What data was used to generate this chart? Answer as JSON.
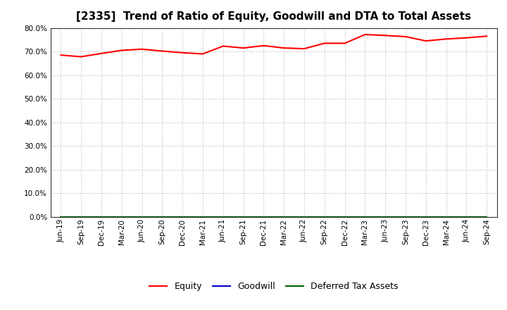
{
  "title": "[2335]  Trend of Ratio of Equity, Goodwill and DTA to Total Assets",
  "x_labels": [
    "Jun-19",
    "Sep-19",
    "Dec-19",
    "Mar-20",
    "Jun-20",
    "Sep-20",
    "Dec-20",
    "Mar-21",
    "Jun-21",
    "Sep-21",
    "Dec-21",
    "Mar-22",
    "Jun-22",
    "Sep-22",
    "Dec-22",
    "Mar-23",
    "Jun-23",
    "Sep-23",
    "Dec-23",
    "Mar-24",
    "Jun-24",
    "Sep-24"
  ],
  "equity": [
    68.5,
    67.8,
    69.2,
    70.5,
    71.0,
    70.2,
    69.5,
    69.0,
    72.3,
    71.5,
    72.5,
    71.5,
    71.2,
    73.5,
    73.5,
    77.2,
    76.8,
    76.3,
    74.5,
    75.3,
    75.8,
    76.5
  ],
  "goodwill": [
    0.0,
    0.0,
    0.0,
    0.0,
    0.0,
    0.0,
    0.0,
    0.0,
    0.0,
    0.0,
    0.0,
    0.0,
    0.0,
    0.0,
    0.0,
    0.0,
    0.0,
    0.0,
    0.0,
    0.0,
    0.0,
    0.0
  ],
  "dta": [
    0.0,
    0.0,
    0.0,
    0.0,
    0.0,
    0.0,
    0.0,
    0.0,
    0.0,
    0.0,
    0.0,
    0.0,
    0.0,
    0.0,
    0.0,
    0.0,
    0.0,
    0.0,
    0.0,
    0.0,
    0.0,
    0.0
  ],
  "equity_color": "#ff0000",
  "goodwill_color": "#0000cc",
  "dta_color": "#006600",
  "ylim": [
    0.0,
    80.0
  ],
  "yticks": [
    0.0,
    10.0,
    20.0,
    30.0,
    40.0,
    50.0,
    60.0,
    70.0,
    80.0
  ],
  "background_color": "#ffffff",
  "grid_color": "#bbbbbb",
  "title_fontsize": 11,
  "tick_fontsize": 7.5,
  "legend_labels": [
    "Equity",
    "Goodwill",
    "Deferred Tax Assets"
  ]
}
